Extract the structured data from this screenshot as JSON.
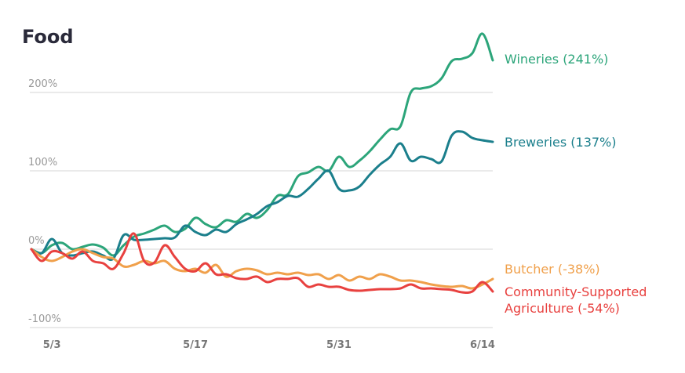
{
  "chart_data": {
    "type": "line",
    "title": "Food",
    "xlabel": "",
    "ylabel": "",
    "ylim": [
      -100,
      280
    ],
    "yticks": [
      {
        "value": 200,
        "label": "200%"
      },
      {
        "value": 100,
        "label": "100%"
      },
      {
        "value": 0,
        "label": "0%"
      },
      {
        "value": -100,
        "label": "-100%"
      }
    ],
    "xticks": [
      {
        "day": 2,
        "label": "5/3"
      },
      {
        "day": 16,
        "label": "5/17"
      },
      {
        "day": 30,
        "label": "5/31"
      },
      {
        "day": 44,
        "label": "6/14"
      }
    ],
    "x_days": 46,
    "grid": true,
    "legend": "right, end-of-line labels",
    "series": [
      {
        "name": "Wineries",
        "label": "Wineries (241%)",
        "color": "#2ca57a",
        "values": [
          0,
          -5,
          5,
          8,
          0,
          3,
          6,
          2,
          -8,
          5,
          16,
          20,
          25,
          30,
          22,
          26,
          40,
          32,
          28,
          37,
          35,
          45,
          40,
          50,
          68,
          70,
          93,
          98,
          105,
          100,
          118,
          105,
          113,
          125,
          140,
          153,
          157,
          200,
          205,
          208,
          218,
          240,
          243,
          250,
          275,
          241
        ]
      },
      {
        "name": "Breweries",
        "label": "Breweries (137%)",
        "color": "#1b7f8c",
        "values": [
          0,
          -5,
          13,
          -5,
          -8,
          -5,
          -3,
          -8,
          -12,
          18,
          12,
          12,
          13,
          14,
          15,
          30,
          22,
          18,
          25,
          22,
          32,
          38,
          45,
          55,
          60,
          68,
          67,
          77,
          90,
          100,
          77,
          75,
          80,
          95,
          108,
          118,
          135,
          113,
          118,
          115,
          112,
          145,
          150,
          142,
          139,
          137
        ]
      },
      {
        "name": "Butcher",
        "label": "Butcher (-38%)",
        "color": "#f0a04b",
        "values": [
          0,
          -10,
          -15,
          -10,
          -3,
          0,
          -5,
          -10,
          -12,
          -22,
          -20,
          -15,
          -18,
          -15,
          -25,
          -28,
          -25,
          -30,
          -20,
          -35,
          -28,
          -25,
          -27,
          -32,
          -30,
          -32,
          -30,
          -33,
          -32,
          -38,
          -33,
          -40,
          -35,
          -38,
          -32,
          -35,
          -40,
          -40,
          -42,
          -45,
          -47,
          -48,
          -47,
          -50,
          -45,
          -38
        ]
      },
      {
        "name": "Community-Supported Agriculture",
        "label_lines": [
          "Community-Supported",
          "Agriculture (-54%)"
        ],
        "color": "#e8413f",
        "values": [
          0,
          -15,
          -3,
          -5,
          -12,
          -3,
          -15,
          -18,
          -25,
          -5,
          20,
          -15,
          -17,
          5,
          -10,
          -25,
          -28,
          -18,
          -32,
          -32,
          -37,
          -38,
          -35,
          -42,
          -38,
          -38,
          -37,
          -48,
          -45,
          -48,
          -48,
          -52,
          -53,
          -52,
          -51,
          -51,
          -50,
          -45,
          -50,
          -50,
          -51,
          -52,
          -55,
          -54,
          -42,
          -54
        ]
      }
    ]
  }
}
